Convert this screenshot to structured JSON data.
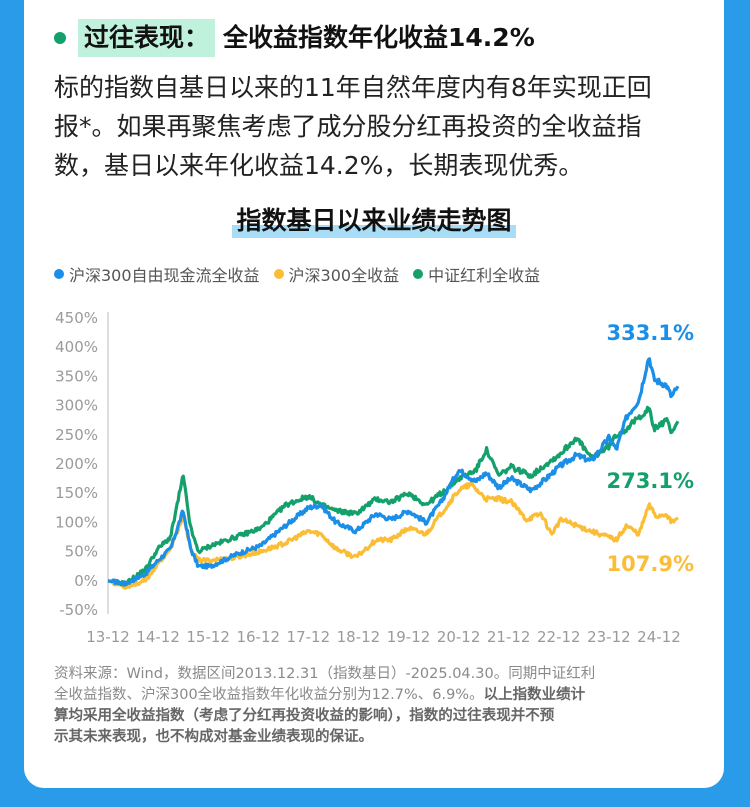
{
  "header": {
    "tag": "过往表现：",
    "headline": "全收益指数年化收益14.2%"
  },
  "paragraph": {
    "line1": "标的指数自基日以来的11年自然年度内有8年实现正回",
    "line2": "报*。如果再聚焦考虑了成分股分红再投资的全收益指",
    "line3": "数，基日以来年化收益14.2%，长期表现优秀。"
  },
  "colors": {
    "blue": "#1b8ee8",
    "yellow": "#fbbd36",
    "green": "#13a06b",
    "tag_bg": "#bff1dc",
    "frame": "#2a9be8"
  },
  "chart_data": {
    "type": "line",
    "title": "指数基日以来业绩走势图",
    "xlabel": "",
    "ylabel": "",
    "ylim": [
      -0.5,
      4.5
    ],
    "yticks": [
      "450%",
      "400%",
      "350%",
      "300%",
      "250%",
      "200%",
      "150%",
      "100%",
      "50%",
      "0%",
      "-50%"
    ],
    "x_ticks": [
      "13-12",
      "14-12",
      "15-12",
      "16-12",
      "17-12",
      "18-12",
      "19-12",
      "20-12",
      "21-12",
      "22-12",
      "23-12",
      "24-12"
    ],
    "x_start": 2013.95,
    "x_end": 2025.33,
    "grid": false,
    "legend_position": "top-left",
    "series": [
      {
        "name": "沪深300自由现金流全收益",
        "color_key": "blue",
        "end_label": "333.1%",
        "points": [
          [
            2013.95,
            0
          ],
          [
            2014.3,
            -0.05
          ],
          [
            2014.7,
            0.12
          ],
          [
            2014.95,
            0.35
          ],
          [
            2015.2,
            0.55
          ],
          [
            2015.45,
            1.2
          ],
          [
            2015.6,
            0.55
          ],
          [
            2015.75,
            0.25
          ],
          [
            2016.0,
            0.25
          ],
          [
            2016.5,
            0.45
          ],
          [
            2017.0,
            0.6
          ],
          [
            2017.5,
            0.95
          ],
          [
            2017.95,
            1.25
          ],
          [
            2018.2,
            1.3
          ],
          [
            2018.5,
            1.0
          ],
          [
            2018.9,
            0.85
          ],
          [
            2019.3,
            1.15
          ],
          [
            2019.6,
            1.05
          ],
          [
            2019.95,
            1.2
          ],
          [
            2020.3,
            1.0
          ],
          [
            2020.6,
            1.35
          ],
          [
            2020.95,
            1.9
          ],
          [
            2021.3,
            1.7
          ],
          [
            2021.5,
            1.85
          ],
          [
            2021.75,
            1.6
          ],
          [
            2022.0,
            1.75
          ],
          [
            2022.4,
            1.55
          ],
          [
            2022.7,
            1.75
          ],
          [
            2022.95,
            1.95
          ],
          [
            2023.3,
            2.15
          ],
          [
            2023.6,
            2.05
          ],
          [
            2023.95,
            2.45
          ],
          [
            2024.1,
            2.25
          ],
          [
            2024.3,
            2.8
          ],
          [
            2024.55,
            3.1
          ],
          [
            2024.75,
            3.85
          ],
          [
            2024.85,
            3.45
          ],
          [
            2025.1,
            3.35
          ],
          [
            2025.2,
            3.15
          ],
          [
            2025.33,
            3.331
          ]
        ]
      },
      {
        "name": "沪深300全收益",
        "color_key": "yellow",
        "end_label": "107.9%",
        "points": [
          [
            2013.95,
            0
          ],
          [
            2014.3,
            -0.1
          ],
          [
            2014.7,
            0.0
          ],
          [
            2014.95,
            0.3
          ],
          [
            2015.2,
            0.55
          ],
          [
            2015.45,
            1.1
          ],
          [
            2015.6,
            0.55
          ],
          [
            2015.75,
            0.35
          ],
          [
            2016.0,
            0.35
          ],
          [
            2016.5,
            0.4
          ],
          [
            2017.0,
            0.5
          ],
          [
            2017.5,
            0.65
          ],
          [
            2017.95,
            0.85
          ],
          [
            2018.2,
            0.8
          ],
          [
            2018.5,
            0.55
          ],
          [
            2018.9,
            0.4
          ],
          [
            2019.3,
            0.7
          ],
          [
            2019.6,
            0.7
          ],
          [
            2019.95,
            0.9
          ],
          [
            2020.3,
            0.8
          ],
          [
            2020.6,
            1.15
          ],
          [
            2020.95,
            1.55
          ],
          [
            2021.2,
            1.65
          ],
          [
            2021.5,
            1.4
          ],
          [
            2021.75,
            1.4
          ],
          [
            2022.0,
            1.35
          ],
          [
            2022.3,
            1.05
          ],
          [
            2022.6,
            1.15
          ],
          [
            2022.8,
            0.8
          ],
          [
            2023.0,
            1.05
          ],
          [
            2023.3,
            0.95
          ],
          [
            2023.6,
            0.85
          ],
          [
            2023.95,
            0.75
          ],
          [
            2024.1,
            0.7
          ],
          [
            2024.3,
            0.95
          ],
          [
            2024.55,
            0.8
          ],
          [
            2024.75,
            1.3
          ],
          [
            2024.9,
            1.1
          ],
          [
            2025.1,
            1.15
          ],
          [
            2025.2,
            1.0
          ],
          [
            2025.33,
            1.079
          ]
        ]
      },
      {
        "name": "中证红利全收益",
        "color_key": "green",
        "end_label": "273.1%",
        "points": [
          [
            2013.95,
            0
          ],
          [
            2014.3,
            -0.05
          ],
          [
            2014.7,
            0.2
          ],
          [
            2014.95,
            0.55
          ],
          [
            2015.2,
            0.75
          ],
          [
            2015.45,
            1.8
          ],
          [
            2015.6,
            0.9
          ],
          [
            2015.75,
            0.5
          ],
          [
            2016.0,
            0.6
          ],
          [
            2016.5,
            0.75
          ],
          [
            2017.0,
            0.9
          ],
          [
            2017.5,
            1.3
          ],
          [
            2017.95,
            1.45
          ],
          [
            2018.2,
            1.3
          ],
          [
            2018.5,
            1.2
          ],
          [
            2018.9,
            1.15
          ],
          [
            2019.3,
            1.4
          ],
          [
            2019.6,
            1.35
          ],
          [
            2019.95,
            1.5
          ],
          [
            2020.3,
            1.3
          ],
          [
            2020.6,
            1.5
          ],
          [
            2020.95,
            1.75
          ],
          [
            2021.3,
            1.9
          ],
          [
            2021.5,
            2.25
          ],
          [
            2021.75,
            1.8
          ],
          [
            2022.0,
            1.95
          ],
          [
            2022.4,
            1.8
          ],
          [
            2022.7,
            2.0
          ],
          [
            2022.95,
            2.15
          ],
          [
            2023.3,
            2.45
          ],
          [
            2023.6,
            2.1
          ],
          [
            2023.95,
            2.3
          ],
          [
            2024.1,
            2.5
          ],
          [
            2024.3,
            2.6
          ],
          [
            2024.55,
            2.8
          ],
          [
            2024.75,
            2.95
          ],
          [
            2024.85,
            2.6
          ],
          [
            2025.1,
            2.75
          ],
          [
            2025.2,
            2.55
          ],
          [
            2025.33,
            2.731
          ]
        ]
      }
    ]
  },
  "note": {
    "line1": "资料来源：Wind，数据区间2013.12.31（指数基日）-2025.04.30。同期中证红利",
    "line2a": "全收益指数、沪深300全收益指数年化收益分别为12.7%、6.9%。",
    "line2b": "以上指数业绩计",
    "line3": "算均采用全收益指数（考虑了分红再投资收益的影响），指数的过往表现并不预",
    "line4": "示其未来表现，也不构成对基金业绩表现的保证。"
  }
}
